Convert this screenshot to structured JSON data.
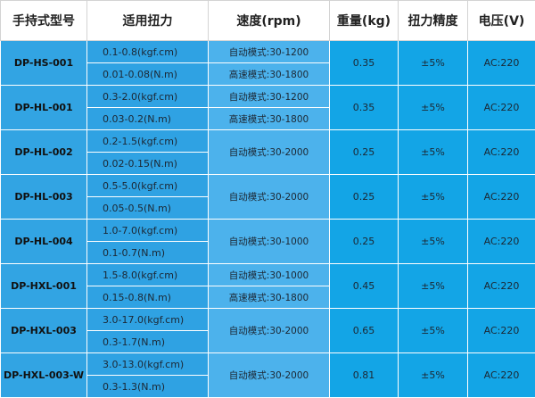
{
  "header": {
    "model": "手持式型号",
    "torque": "适用扭力",
    "speed": "速度(rpm)",
    "weight": "重量(kg)",
    "precision": "扭力精度",
    "voltage": "电压(V)"
  },
  "rows": [
    {
      "model": "DP-HS-001",
      "torque": [
        "0.1-0.8(kgf.cm)",
        "0.01-0.08(N.m)"
      ],
      "speed": [
        "自动模式:30-1200",
        "高速模式:30-1800"
      ],
      "weight": "0.35",
      "precision": "±5%",
      "voltage": "AC:220"
    },
    {
      "model": "DP-HL-001",
      "torque": [
        "0.3-2.0(kgf.cm)",
        "0.03-0.2(N.m)"
      ],
      "speed": [
        "自动模式:30-1200",
        "高速模式:30-1800"
      ],
      "weight": "0.35",
      "precision": "±5%",
      "voltage": "AC:220"
    },
    {
      "model": "DP-HL-002",
      "torque": [
        "0.2-1.5(kgf.cm)",
        "0.02-0.15(N.m)"
      ],
      "speed": [
        "自动模式:30-2000"
      ],
      "weight": "0.25",
      "precision": "±5%",
      "voltage": "AC:220"
    },
    {
      "model": "DP-HL-003",
      "torque": [
        "0.5-5.0(kgf.cm)",
        "0.05-0.5(N.m)"
      ],
      "speed": [
        "自动模式:30-2000"
      ],
      "weight": "0.25",
      "precision": "±5%",
      "voltage": "AC:220"
    },
    {
      "model": "DP-HL-004",
      "torque": [
        "1.0-7.0(kgf.cm)",
        "0.1-0.7(N.m)"
      ],
      "speed": [
        "自动模式:30-1000"
      ],
      "weight": "0.25",
      "precision": "±5%",
      "voltage": "AC:220"
    },
    {
      "model": "DP-HXL-001",
      "torque": [
        "1.5-8.0(kgf.cm)",
        "0.15-0.8(N.m)"
      ],
      "speed": [
        "自动模式:30-1000",
        "高速模式:30-1800"
      ],
      "weight": "0.45",
      "precision": "±5%",
      "voltage": "AC:220"
    },
    {
      "model": "DP-HXL-003",
      "torque": [
        "3.0-17.0(kgf.cm)",
        "0.3-1.7(N.m)"
      ],
      "speed": [
        "自动模式:30-2000"
      ],
      "weight": "0.65",
      "precision": "±5%",
      "voltage": "AC:220"
    },
    {
      "model": "DP-HXL-003-W",
      "torque": [
        "3.0-13.0(kgf.cm)",
        "0.3-1.3(N.m)"
      ],
      "speed": [
        "自动模式:30-2000"
      ],
      "weight": "0.81",
      "precision": "±5%",
      "voltage": "AC:220"
    }
  ]
}
